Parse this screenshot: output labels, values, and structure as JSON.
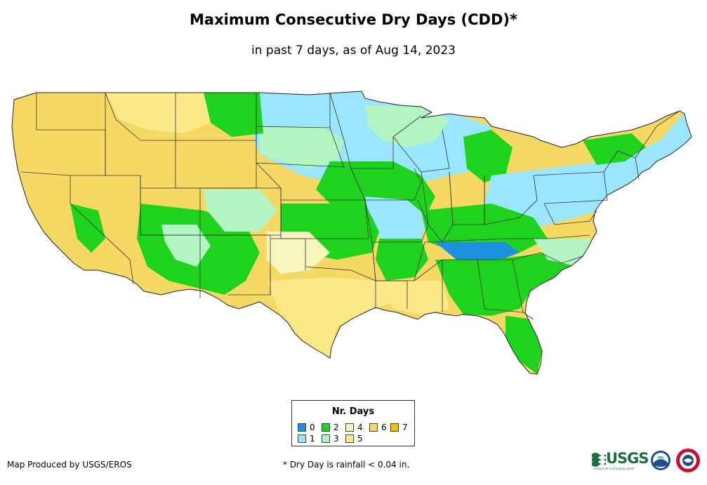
{
  "title": "Maximum Consecutive Dry Days (CDD)*",
  "subtitle": "in past 7 days, as of Aug 14, 2023",
  "legend": {
    "title": "Nr. Days",
    "items": [
      {
        "label": "0",
        "color": "#1e90e0"
      },
      {
        "label": "1",
        "color": "#9be6ff"
      },
      {
        "label": "2",
        "color": "#1ed21e"
      },
      {
        "label": "3",
        "color": "#b2f5c2"
      },
      {
        "label": "4",
        "color": "#f6f6be"
      },
      {
        "label": "5",
        "color": "#fbe989"
      },
      {
        "label": "6",
        "color": "#f6d864"
      },
      {
        "label": "7",
        "color": "#f5c000"
      }
    ]
  },
  "footer": {
    "credit": "Map Produced by USGS/EROS",
    "note": "* Dry Day is rainfall < 0.04 in."
  },
  "logos": {
    "usgs": "USGS",
    "usgs_tagline": "science for a changing world"
  },
  "colors": {
    "water": "#ffffff",
    "border": "#333333",
    "coast": "#222222"
  }
}
